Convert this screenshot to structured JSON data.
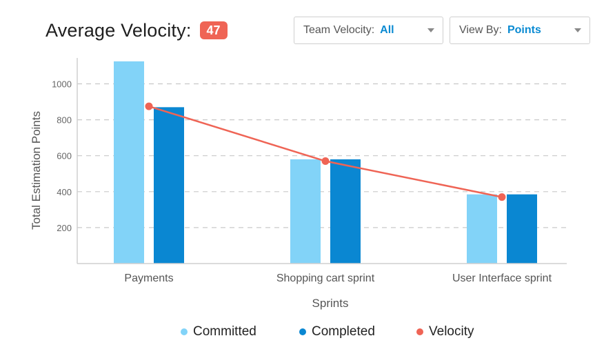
{
  "header": {
    "title": "Average Velocity:",
    "badge": "47"
  },
  "filters": {
    "team": {
      "label": "Team Velocity:",
      "value": "All"
    },
    "view": {
      "label": "View By:",
      "value": "Points"
    }
  },
  "colors": {
    "committed": "#82d3f8",
    "completed": "#0a87d2",
    "velocity": "#ef6455",
    "badge": "#ef6455"
  },
  "chart_data": {
    "type": "bar",
    "title": "",
    "xlabel": "Sprints",
    "ylabel": "Total Estimation Points",
    "categories": [
      "Payments",
      "Shopping cart sprint",
      "User Interface sprint"
    ],
    "series": [
      {
        "name": "Committed",
        "type": "bar",
        "values": [
          1125,
          580,
          385
        ]
      },
      {
        "name": "Completed",
        "type": "bar",
        "values": [
          870,
          580,
          385
        ]
      },
      {
        "name": "Velocity",
        "type": "line",
        "values": [
          875,
          570,
          370
        ]
      }
    ],
    "y_ticks": [
      200,
      400,
      600,
      800,
      1000
    ],
    "ylim": [
      0,
      1150
    ],
    "grid": true,
    "legend_position": "bottom"
  }
}
